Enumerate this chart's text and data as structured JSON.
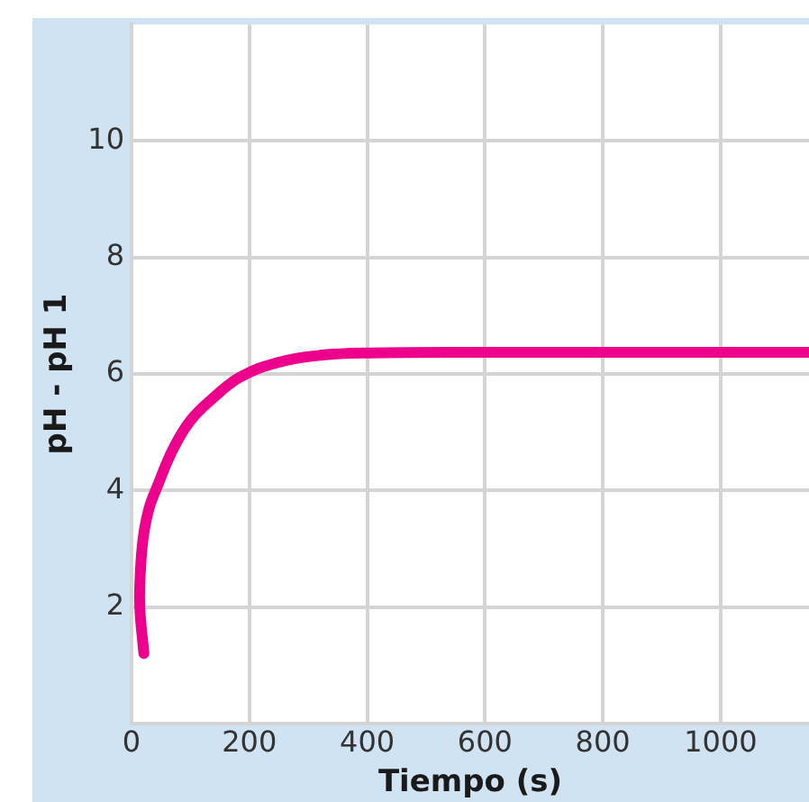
{
  "chart_data": {
    "type": "line",
    "xlabel": "Tiempo (s)",
    "ylabel": "pH - pH 1",
    "xlim": [
      0,
      1150
    ],
    "xticks": [
      0,
      200,
      400,
      600,
      800,
      1000
    ],
    "ylim": [
      0,
      12
    ],
    "yticks": [
      2,
      4,
      6,
      8,
      10
    ],
    "grid": true,
    "legend": false,
    "marker": "none",
    "line_style": "solid",
    "series": [
      {
        "color": "#ec008c",
        "x": [
          21,
          14,
          15,
          20,
          30,
          45,
          70,
          100,
          140,
          185,
          250,
          320,
          400,
          600,
          1150
        ],
        "values": [
          1.2,
          2,
          2.6,
          3.2,
          3.7,
          4.1,
          4.7,
          5.2,
          5.6,
          5.95,
          6.2,
          6.32,
          6.36,
          6.37,
          6.37
        ]
      }
    ]
  }
}
